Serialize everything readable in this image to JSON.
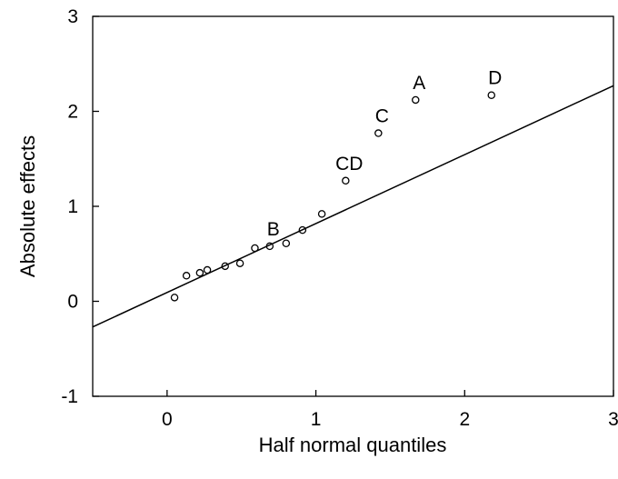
{
  "chart_data": {
    "type": "scatter",
    "xlabel": "Half normal quantiles",
    "ylabel": "Absolute effects",
    "xlim": [
      -0.5,
      3
    ],
    "ylim": [
      -1,
      3
    ],
    "xticks": [
      0,
      1,
      2,
      3
    ],
    "xtick_labels": [
      "0",
      "1",
      "2",
      "3"
    ],
    "yticks": [
      -1,
      0,
      1,
      2,
      3
    ],
    "ytick_labels": [
      "-1",
      "0",
      "1",
      "2",
      "3"
    ],
    "grid": false,
    "points": [
      {
        "x": 0.05,
        "y": 0.04,
        "label": ""
      },
      {
        "x": 0.13,
        "y": 0.27,
        "label": ""
      },
      {
        "x": 0.22,
        "y": 0.3,
        "label": ""
      },
      {
        "x": 0.27,
        "y": 0.33,
        "label": ""
      },
      {
        "x": 0.39,
        "y": 0.37,
        "label": ""
      },
      {
        "x": 0.49,
        "y": 0.4,
        "label": ""
      },
      {
        "x": 0.59,
        "y": 0.56,
        "label": ""
      },
      {
        "x": 0.69,
        "y": 0.58,
        "label": "B"
      },
      {
        "x": 0.8,
        "y": 0.61,
        "label": ""
      },
      {
        "x": 0.91,
        "y": 0.75,
        "label": ""
      },
      {
        "x": 1.04,
        "y": 0.92,
        "label": ""
      },
      {
        "x": 1.2,
        "y": 1.27,
        "label": "CD"
      },
      {
        "x": 1.42,
        "y": 1.77,
        "label": "C"
      },
      {
        "x": 1.67,
        "y": 2.12,
        "label": "A"
      },
      {
        "x": 2.18,
        "y": 2.17,
        "label": "D"
      }
    ],
    "reference_line": {
      "x": [
        -0.5,
        3
      ],
      "y": [
        -0.27,
        2.27
      ]
    }
  }
}
